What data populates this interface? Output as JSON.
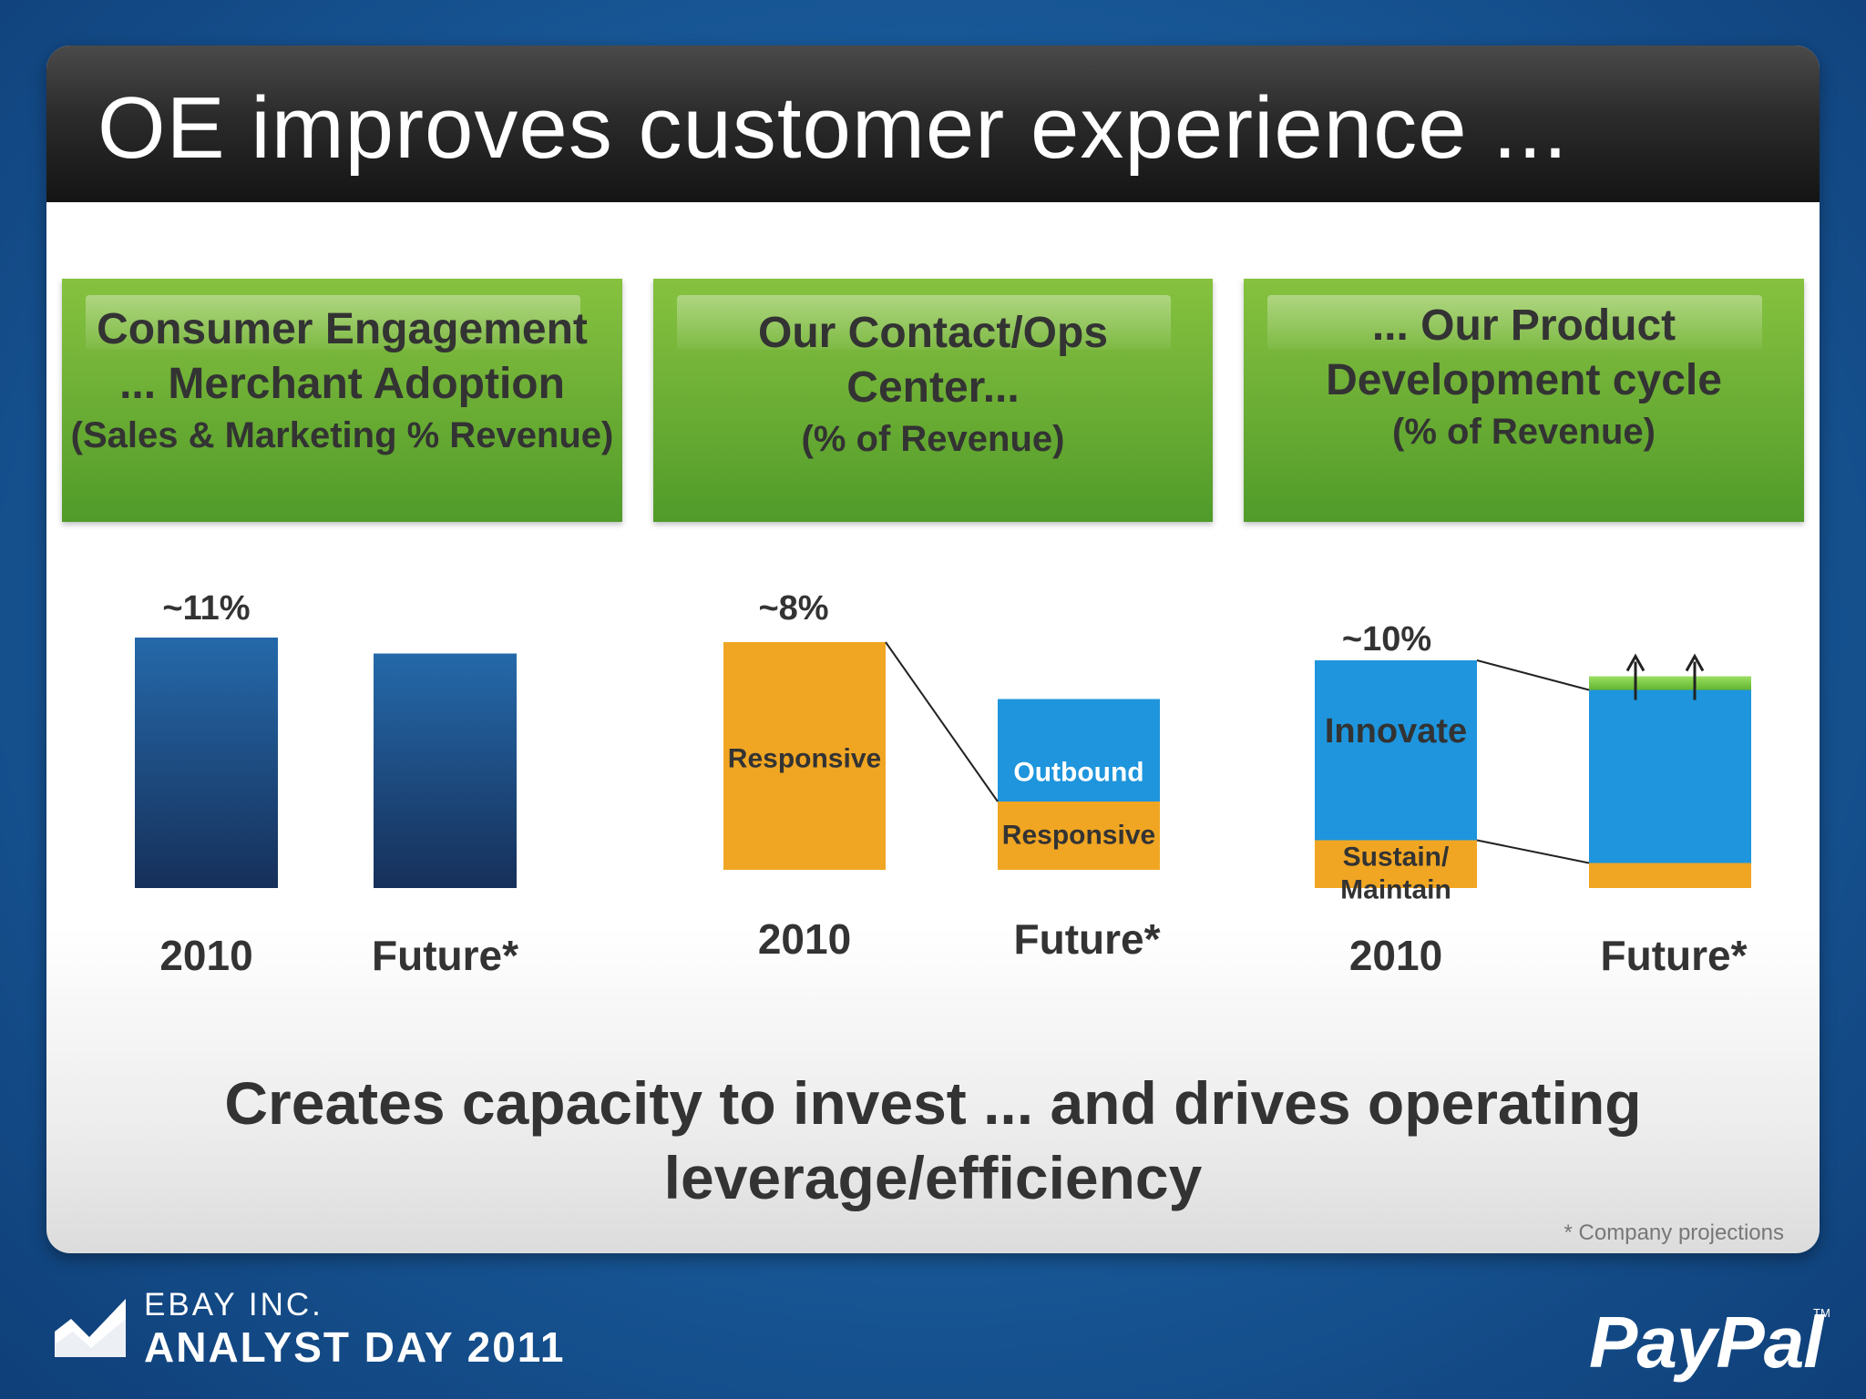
{
  "slide": {
    "title": "OE improves customer experience ...",
    "bottom_line1": "Creates capacity to invest ... and drives operating",
    "bottom_line2": "leverage/efficiency",
    "footnote": "* Company projections",
    "brand_line1": "EBAY INC.",
    "brand_line2": "ANALYST DAY 2011",
    "paypal": "PayPal",
    "tm": "TM"
  },
  "boxes": [
    {
      "lines": [
        "Consumer Engagement",
        "... Merchant Adoption"
      ],
      "sub": "(Sales & Marketing % Revenue)"
    },
    {
      "lines": [
        "Our Contact/Ops",
        "Center..."
      ],
      "sub": "(% of Revenue)"
    },
    {
      "lines": [
        "... Our Product",
        "Development cycle"
      ],
      "sub": "(% of Revenue)"
    }
  ],
  "colors": {
    "blue_dark": "#16305a",
    "blue_mid": "#2569aa",
    "blue_bright": "#1e95dc",
    "orange": "#f0a623",
    "green": "#7dc843",
    "text": "#333333"
  },
  "chart_data": [
    {
      "type": "bar",
      "categories": [
        "2010",
        "Future*"
      ],
      "values": [
        11,
        10.3
      ],
      "data_labels": [
        "~11%",
        ""
      ],
      "ylabel": "Sales & Marketing % Revenue"
    },
    {
      "type": "bar",
      "stacked": true,
      "categories": [
        "2010",
        "Future*"
      ],
      "series": [
        {
          "name": "Responsive",
          "values": [
            8,
            2.4
          ]
        },
        {
          "name": "Outbound",
          "values": [
            0,
            3.6
          ]
        }
      ],
      "data_labels": [
        "~8%",
        ""
      ],
      "ylabel": "% of Revenue"
    },
    {
      "type": "bar",
      "stacked": true,
      "categories": [
        "2010",
        "Future*"
      ],
      "series": [
        {
          "name": "Sustain/ Maintain",
          "values": [
            2.1,
            1.1
          ]
        },
        {
          "name": "Innovate",
          "values": [
            7.9,
            7.6
          ]
        },
        {
          "name": "",
          "values": [
            0,
            0.6
          ]
        }
      ],
      "data_labels": [
        "~10%",
        ""
      ],
      "ylabel": "% of Revenue"
    }
  ]
}
